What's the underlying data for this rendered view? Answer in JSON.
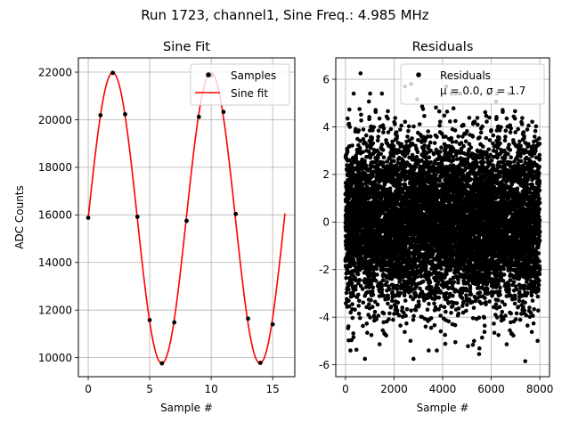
{
  "figure_title": "Run 1723, channel1, Sine Freq.: 4.985 MHz",
  "chart_data": [
    {
      "type": "line",
      "title": "Sine Fit",
      "xlabel": "Sample #",
      "ylabel": "ADC Counts",
      "xlim": [
        -0.8,
        16.8
      ],
      "ylim": [
        9200,
        22600
      ],
      "xticks": [
        0,
        5,
        10,
        15
      ],
      "yticks": [
        10000,
        12000,
        14000,
        16000,
        18000,
        20000,
        22000
      ],
      "grid": true,
      "legend": "top-right",
      "series": [
        {
          "name": "Samples",
          "style": "points",
          "color": "#000000",
          "x": [
            0,
            1,
            2,
            3,
            4,
            5,
            6,
            7,
            8,
            9,
            10,
            11,
            12,
            13,
            14,
            15
          ],
          "y": [
            15880,
            20190,
            21970,
            20230,
            15920,
            11580,
            9760,
            11480,
            15750,
            20120,
            21870,
            20330,
            16040,
            11640,
            9780,
            11400
          ]
        },
        {
          "name": "Sine fit",
          "style": "line",
          "color": "#ff0000",
          "function": {
            "offset": 15870,
            "amplitude": 6110,
            "period": 7.98,
            "phase": 0
          },
          "x_range": [
            0,
            16
          ]
        }
      ]
    },
    {
      "type": "scatter",
      "title": "Residuals",
      "xlabel": "Sample #",
      "ylabel": "",
      "xlim": [
        -400,
        8400
      ],
      "ylim": [
        -6.5,
        6.9
      ],
      "xticks": [
        0,
        2000,
        4000,
        6000,
        8000
      ],
      "yticks": [
        -6,
        -4,
        -2,
        0,
        2,
        4,
        6
      ],
      "grid": true,
      "legend": "top-right",
      "series": [
        {
          "name": "Residuals",
          "legend_stats": "μ = 0.0, σ = 1.7",
          "color": "#000000",
          "n_points": 8000,
          "distribution": {
            "mean": 0.0,
            "std": 1.7
          },
          "x_range": [
            0,
            8000
          ]
        }
      ],
      "highlighted_points": {
        "x": [
          620,
          2450,
          2700,
          4150,
          800,
          2800,
          5500,
          7400
        ],
        "y": [
          6.25,
          5.7,
          5.8,
          5.7,
          -5.75,
          -5.75,
          -5.55,
          -5.85
        ]
      }
    }
  ]
}
